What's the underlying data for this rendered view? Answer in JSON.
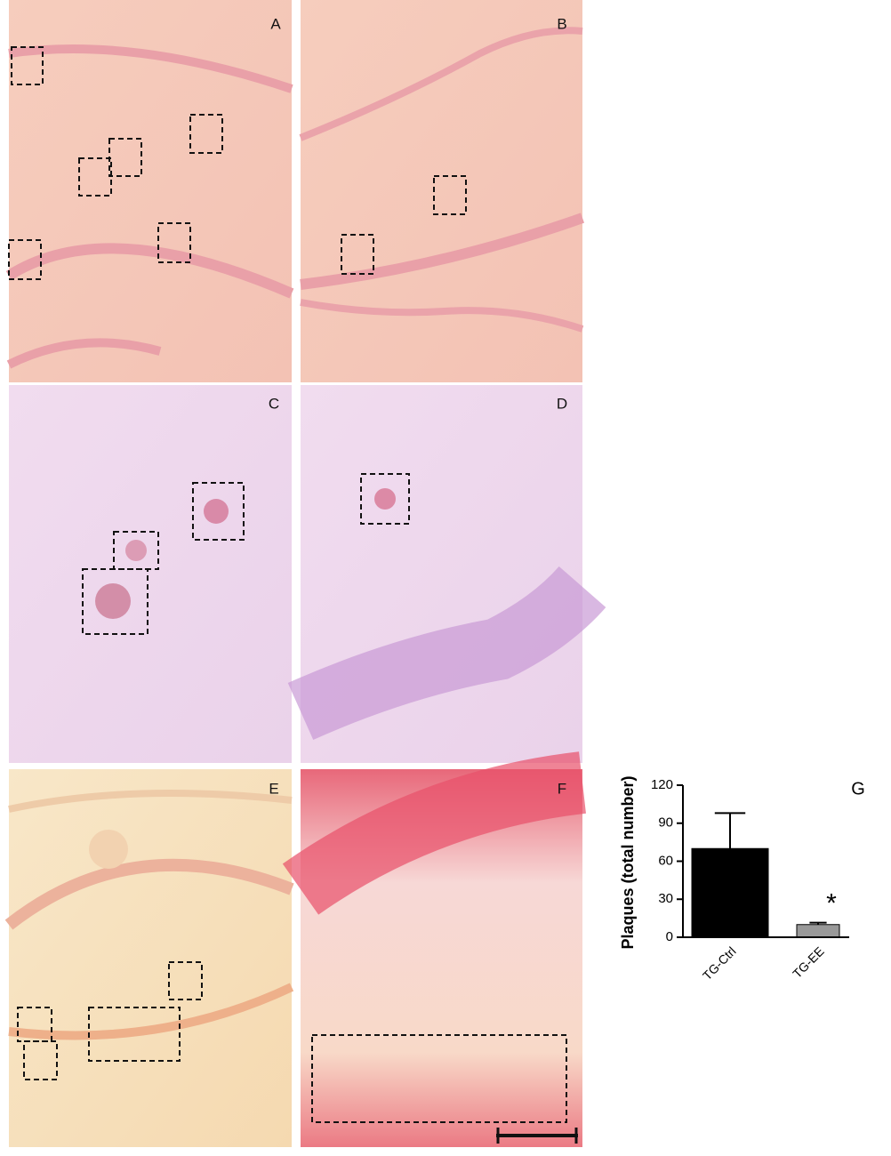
{
  "panels": [
    "A",
    "B",
    "C",
    "D",
    "E",
    "F"
  ],
  "chart_data": {
    "type": "bar",
    "panel_label": "G",
    "ylabel": "Plaques (total number)",
    "categories": [
      "TG-Ctrl",
      "TG-EE"
    ],
    "values": [
      70,
      10
    ],
    "errors": [
      28,
      1.5
    ],
    "colors": [
      "#000000",
      "#999999"
    ],
    "annotation": "*",
    "ylim": [
      0,
      120
    ],
    "yticks": [
      0,
      30,
      60,
      90,
      120
    ]
  }
}
